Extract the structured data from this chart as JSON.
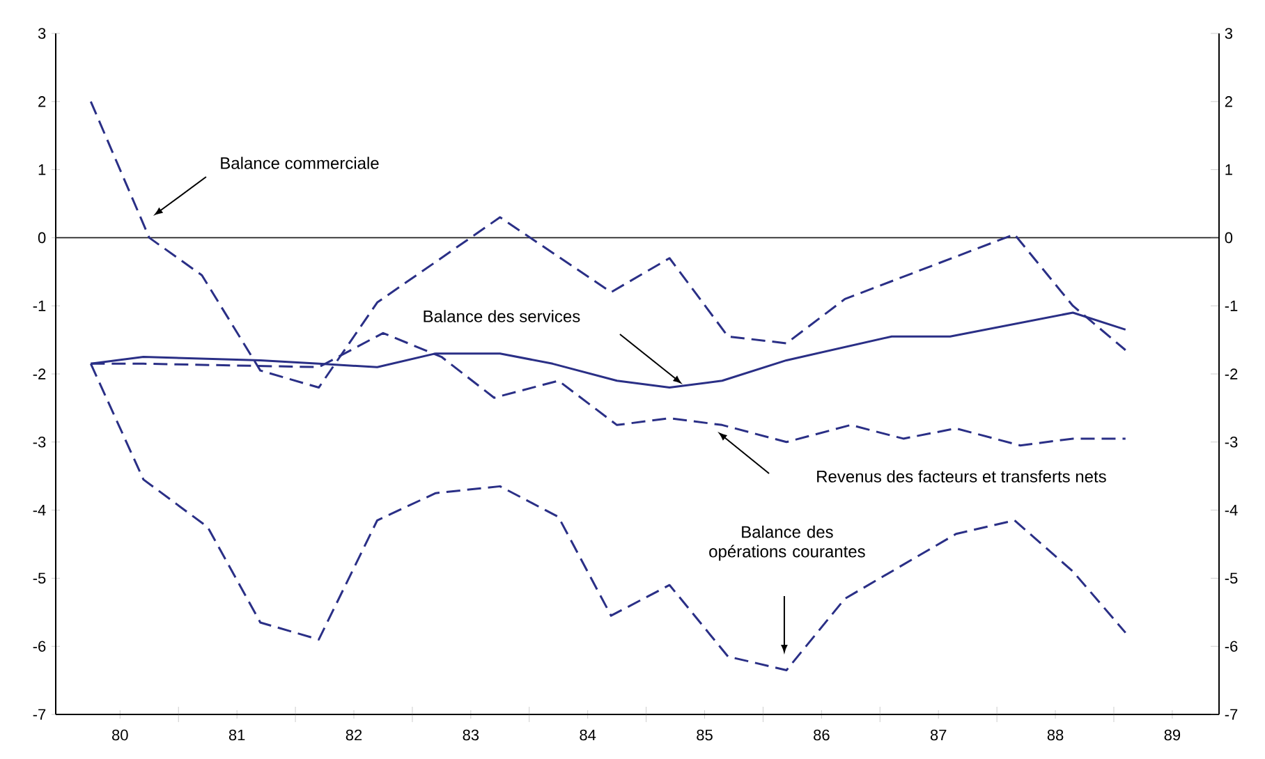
{
  "chart_data": {
    "type": "line",
    "xlim": [
      79.45,
      89.4
    ],
    "xticks": [
      80,
      {
        "value": 80.5,
        "label": null
      },
      81,
      {
        "value": 81.5,
        "label": null
      },
      82,
      {
        "value": 82.5,
        "label": null
      },
      83,
      {
        "value": 83.5,
        "label": null
      },
      84,
      {
        "value": 84.5,
        "label": null
      },
      85,
      {
        "value": 85.5,
        "label": null
      },
      86,
      {
        "value": 86.5,
        "label": null
      },
      87,
      {
        "value": 87.5,
        "label": null
      },
      88,
      {
        "value": 88.5,
        "label": null
      },
      89
    ],
    "ylim": [
      -7,
      3
    ],
    "yticks": [
      3,
      2,
      1,
      0,
      -1,
      -2,
      -3,
      -4,
      -5,
      -6,
      -7
    ],
    "y2lim": [
      -7,
      3
    ],
    "y2ticks": [
      3,
      2,
      1,
      0,
      -1,
      -2,
      -3,
      -4,
      -5,
      -6,
      -7
    ],
    "ref_lines": [
      {
        "axis": "y",
        "value": 0,
        "color": "#222222"
      }
    ],
    "series": [
      {
        "color": "#2a2f86",
        "line_style": "dashed",
        "x": [
          79.75,
          80.25,
          80.7,
          81.2,
          81.7,
          82.2,
          83.25,
          84.2,
          84.7,
          85.2,
          85.7,
          86.2,
          87.65,
          88.15,
          88.6
        ],
        "values": [
          2.0,
          0.0,
          -0.55,
          -1.95,
          -2.2,
          -0.95,
          0.3,
          -0.8,
          -0.3,
          -1.45,
          -1.55,
          -0.9,
          0.05,
          -1.0,
          -1.65
        ]
      },
      {
        "color": "#2a2f86",
        "line_style": "solid",
        "x": [
          79.75,
          80.2,
          81.2,
          81.7,
          82.2,
          82.7,
          83.25,
          83.7,
          84.25,
          84.7,
          85.15,
          85.7,
          86.6,
          87.1,
          88.15,
          88.6
        ],
        "values": [
          -1.85,
          -1.75,
          -1.8,
          -1.85,
          -1.9,
          -1.7,
          -1.7,
          -1.85,
          -2.1,
          -2.2,
          -2.1,
          -1.8,
          -1.45,
          -1.45,
          -1.1,
          -1.35
        ]
      },
      {
        "color": "#2a2f86",
        "line_style": "dashed",
        "x": [
          79.75,
          80.2,
          81.7,
          82.25,
          82.75,
          83.2,
          83.75,
          84.25,
          84.7,
          85.15,
          85.7,
          86.25,
          86.7,
          87.15,
          87.7,
          88.15,
          88.6
        ],
        "values": [
          -1.85,
          -1.85,
          -1.9,
          -1.4,
          -1.75,
          -2.35,
          -2.1,
          -2.75,
          -2.65,
          -2.75,
          -3.0,
          -2.75,
          -2.95,
          -2.8,
          -3.05,
          -2.95,
          -2.95
        ]
      },
      {
        "color": "#2a2f86",
        "line_style": "dashed",
        "x": [
          79.75,
          80.2,
          80.75,
          81.2,
          81.7,
          82.2,
          82.7,
          83.25,
          83.75,
          84.2,
          84.7,
          85.2,
          85.7,
          86.2,
          87.15,
          87.65,
          88.15,
          88.6
        ],
        "values": [
          -1.85,
          -3.55,
          -4.25,
          -5.65,
          -5.9,
          -4.15,
          -3.75,
          -3.65,
          -4.1,
          -5.55,
          -5.1,
          -6.15,
          -6.35,
          -5.3,
          -4.35,
          -4.15,
          -4.9,
          -5.8
        ]
      }
    ],
    "annotations": [
      "Balance commerciale",
      "Balance des services",
      "Revenus des facteurs et transferts nets",
      "Balance des opérations courantes"
    ]
  }
}
